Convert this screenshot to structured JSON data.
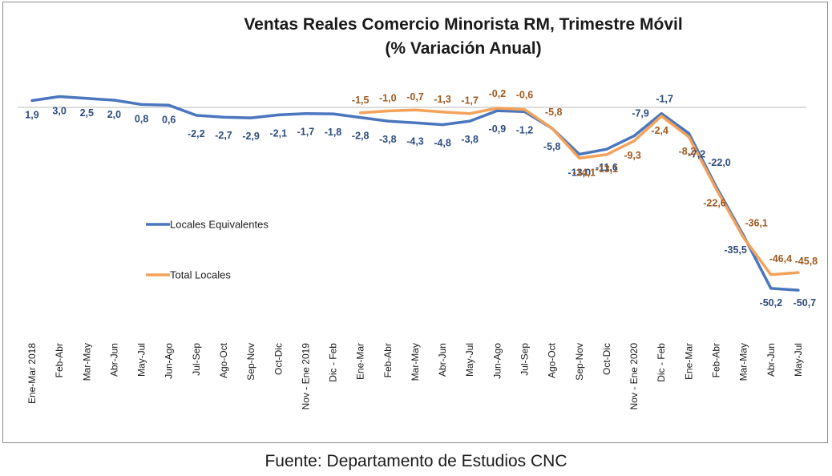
{
  "chart_data": {
    "type": "line",
    "title": "Ventas Reales Comercio Minorista RM, Trimestre Móvil",
    "subtitle": "(% Variación Anual)",
    "categories": [
      "Ene-Mar 2018",
      "Feb-Abr",
      "Mar-May",
      "Abr-Jun",
      "May-Jul",
      "Jun-Ago",
      "Jul-Sep",
      "Ago-Oct",
      "Sep-Nov",
      "Oct-Dic",
      "Nov - Ene 2019",
      "Dic - Feb",
      "Ene-Mar",
      "Feb-Abr",
      "Mar-May",
      "Abr-Jun",
      "May-Jul",
      "Jun-Ago",
      "Jul-Sep",
      "Ago-Oct",
      "Sep-Nov",
      "Oct-Dic",
      "Nov - Ene 2020",
      "Dic - Feb",
      "Ene-Mar",
      "Feb-Abr",
      "Mar-May",
      "Abr-Jun",
      "May-Jul"
    ],
    "series": [
      {
        "name": "Locales Equivalentes",
        "color": "#4A76BE",
        "label_color": "#2E4C7E",
        "values": [
          1.9,
          3.0,
          2.5,
          2.0,
          0.8,
          0.6,
          -2.2,
          -2.7,
          -2.9,
          -2.1,
          -1.7,
          -1.8,
          -2.8,
          -3.8,
          -4.3,
          -4.8,
          -3.8,
          -0.9,
          -1.2,
          -5.8,
          -13.0,
          -11.6,
          -7.9,
          -1.7,
          -7.2,
          -22.0,
          -35.5,
          -50.2,
          -50.7
        ],
        "labels": [
          "1,9",
          "3,0",
          "2,5",
          "2,0",
          "0,8",
          "0,6",
          "-2,2",
          "-2,7",
          "-2,9",
          "-2,1",
          "-1,7",
          "-1,8",
          "-2,8",
          "-3,8",
          "-4,3",
          "-4,8",
          "-3,8",
          "-0,9",
          "-1,2",
          "-5,8",
          "-13,0",
          "-11,6",
          "-7,9",
          "-1,7",
          "-7,2",
          "-22,0",
          "-35,5",
          "-50,2",
          "-50,7"
        ]
      },
      {
        "name": "Total Locales",
        "color": "#F4A259",
        "label_color": "#A0591E",
        "values": [
          null,
          null,
          null,
          null,
          null,
          null,
          null,
          null,
          null,
          null,
          null,
          null,
          -1.5,
          -1.0,
          -0.7,
          -1.3,
          -1.7,
          -0.2,
          -0.6,
          -5.8,
          -14.1,
          -13.1,
          -9.3,
          -2.4,
          -8.2,
          -22.6,
          -36.1,
          -46.4,
          -45.8
        ],
        "labels": [
          "",
          "",
          "",
          "",
          "",
          "",
          "",
          "",
          "",
          "",
          "",
          "",
          "-1,5",
          "-1,0",
          "-0,7",
          "-1,3",
          "-1,7",
          "-0,2",
          "-0,6",
          "-5,8",
          "-14,1",
          "-13,1",
          "-9,3",
          "-2,4",
          "-8,2",
          "-22,6",
          "-36,1",
          "-46,4",
          "-45,8"
        ]
      }
    ],
    "xlabel": "",
    "ylabel": "",
    "ylim": [
      -58,
      8
    ],
    "grid": false,
    "legend": "left-middle"
  },
  "source": "Fuente: Departamento de Estudios CNC"
}
